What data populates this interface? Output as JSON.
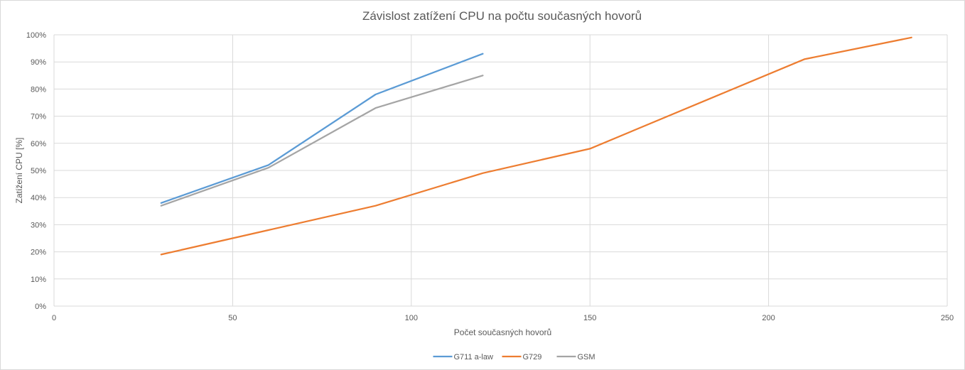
{
  "chart_data": {
    "type": "line",
    "title": "Závislost zatížení CPU na počtu současných hovorů",
    "xlabel": "Počet současných hovorů",
    "ylabel": "Zatížení CPU [%]",
    "xlim": [
      0,
      250
    ],
    "ylim": [
      0,
      100
    ],
    "x_ticks": [
      0,
      50,
      100,
      150,
      200,
      250
    ],
    "x_tick_labels": [
      "0",
      "50",
      "100",
      "150",
      "200",
      "250"
    ],
    "y_ticks": [
      0,
      10,
      20,
      30,
      40,
      50,
      60,
      70,
      80,
      90,
      100
    ],
    "y_tick_labels": [
      "0%",
      "10%",
      "20%",
      "30%",
      "40%",
      "50%",
      "60%",
      "70%",
      "80%",
      "90%",
      "100%"
    ],
    "grid": true,
    "legend_position": "bottom",
    "series": [
      {
        "name": "G711 a-law",
        "color": "#5b9bd5",
        "x": [
          30,
          60,
          90,
          120
        ],
        "y": [
          38,
          52,
          78,
          93
        ]
      },
      {
        "name": "G729",
        "color": "#ed7d31",
        "x": [
          30,
          60,
          90,
          120,
          150,
          210,
          240
        ],
        "y": [
          19,
          28,
          37,
          49,
          58,
          91,
          99
        ]
      },
      {
        "name": "GSM",
        "color": "#a5a5a5",
        "x": [
          30,
          60,
          90,
          120
        ],
        "y": [
          37,
          51,
          73,
          85
        ]
      }
    ]
  }
}
